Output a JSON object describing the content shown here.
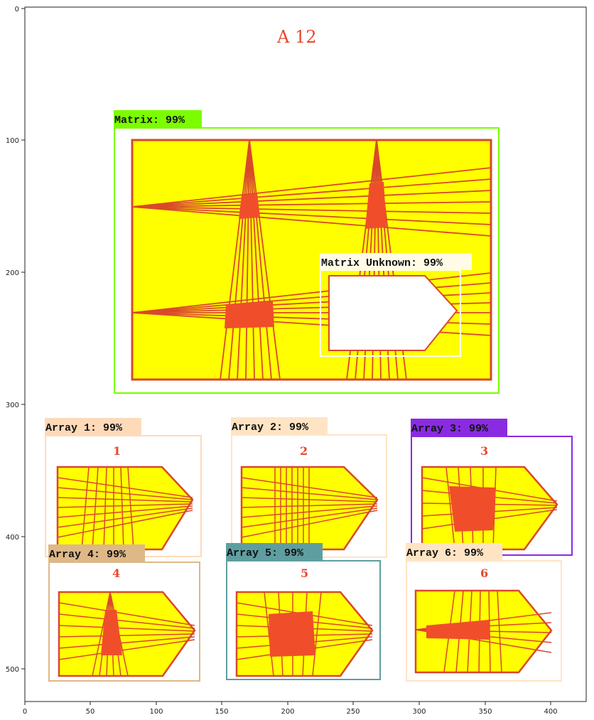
{
  "page_title": "A 12",
  "axes": {
    "x_ticks": [
      "0",
      "50",
      "100",
      "150",
      "200",
      "250",
      "300",
      "350",
      "400"
    ],
    "y_ticks": [
      "0",
      "100",
      "200",
      "300",
      "400",
      "500"
    ]
  },
  "detections": [
    {
      "id": "matrix",
      "label": "Matrix: 99%",
      "color": "#7cfc00"
    },
    {
      "id": "matrix-unknown",
      "label": "Matrix Unknown: 99%",
      "color": "#ffffff"
    },
    {
      "id": "array-1",
      "label": "Array 1: 99%",
      "color": "#ffdab9",
      "number": "1"
    },
    {
      "id": "array-2",
      "label": "Array 2: 99%",
      "color": "#ffe4c4",
      "number": "2"
    },
    {
      "id": "array-3",
      "label": "Array 3: 99%",
      "color": "#8a2be2",
      "number": "3"
    },
    {
      "id": "array-4",
      "label": "Array 4: 99%",
      "color": "#deb887",
      "number": "4"
    },
    {
      "id": "array-5",
      "label": "Array 5: 99%",
      "color": "#5f9ea0",
      "number": "5"
    },
    {
      "id": "array-6",
      "label": "Array 6: 99%",
      "color": "#ffe4c4",
      "number": "6"
    }
  ]
}
